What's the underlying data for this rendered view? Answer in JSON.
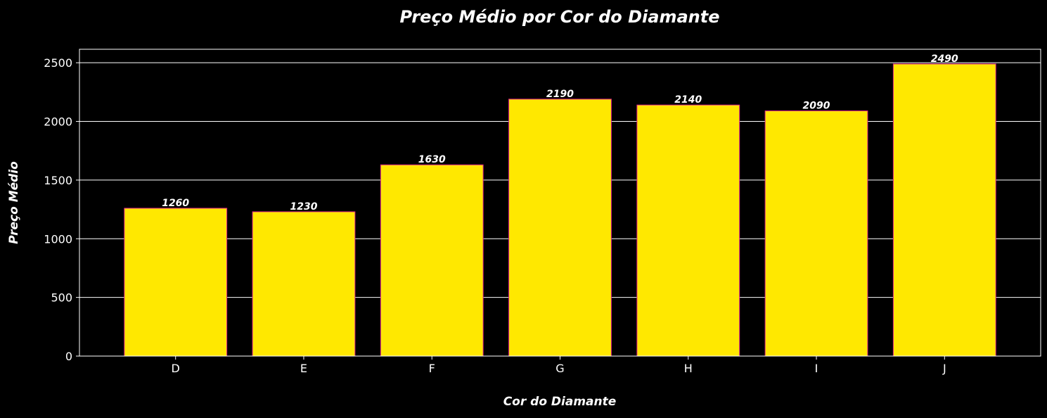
{
  "chart_data": {
    "type": "bar",
    "title": "Preço Médio por Cor do Diamante",
    "xlabel": "Cor do Diamante",
    "ylabel": "Preço Médio",
    "categories": [
      "D",
      "E",
      "F",
      "G",
      "H",
      "I",
      "J"
    ],
    "values": [
      1260,
      1230,
      1630,
      2190,
      2140,
      2090,
      2490
    ],
    "data_labels": [
      "1260",
      "1230",
      "1630",
      "2190",
      "2140",
      "2090",
      "2490"
    ],
    "ylim": [
      0,
      2615
    ],
    "yticks": [
      0,
      500,
      1000,
      1500,
      2000,
      2500
    ],
    "ytick_labels": [
      "0",
      "500",
      "1000",
      "1500",
      "2000",
      "2500"
    ],
    "grid": "y-axis horizontal lines",
    "legend": "none",
    "colors": {
      "background": "#000000",
      "bar_fill": "#ffe800",
      "bar_edge": "#e0218a",
      "grid": "#ffffff",
      "text": "#ffffff"
    }
  }
}
